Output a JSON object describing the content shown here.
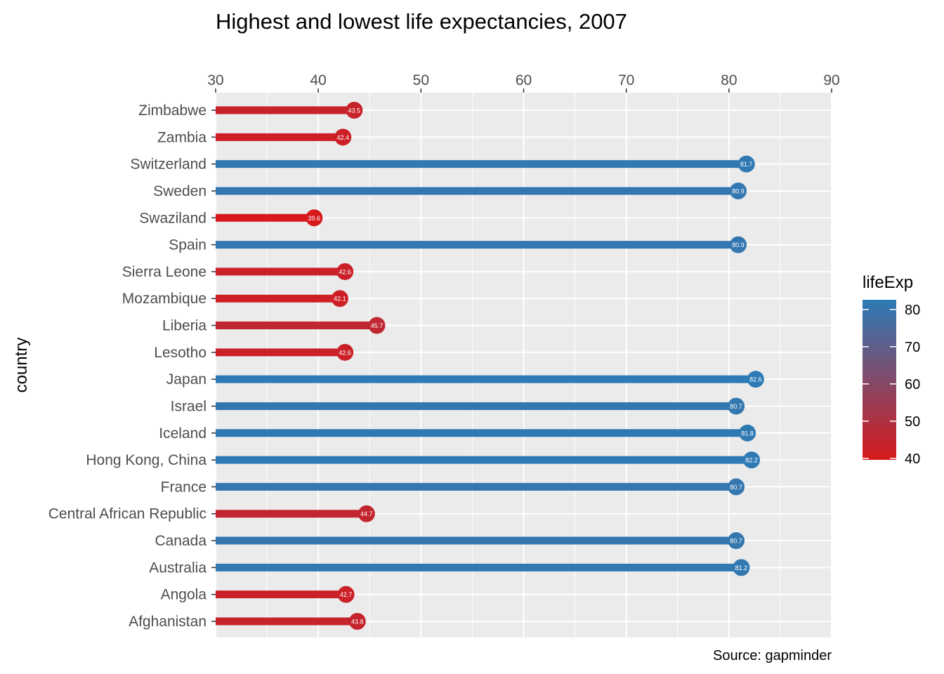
{
  "chart_data": {
    "type": "bar",
    "subtype": "lollipop-horizontal",
    "title": "Highest and lowest life expectancies, 2007",
    "xlabel": "",
    "ylabel": "country",
    "x_axis_position": "top",
    "xlim": [
      30,
      90
    ],
    "xticks": [
      30,
      40,
      50,
      60,
      70,
      80,
      90
    ],
    "grid": true,
    "caption": "Source: gapminder",
    "legend": {
      "title": "lifeExp",
      "type": "colorbar",
      "position": "right",
      "ticks": [
        40,
        50,
        60,
        70,
        80
      ],
      "range": [
        39.6,
        82.6
      ],
      "color_low": "#d7191c",
      "color_high": "#2c7bb6"
    },
    "categories": [
      "Zimbabwe",
      "Zambia",
      "Switzerland",
      "Sweden",
      "Swaziland",
      "Spain",
      "Sierra Leone",
      "Mozambique",
      "Liberia",
      "Lesotho",
      "Japan",
      "Israel",
      "Iceland",
      "Hong Kong, China",
      "France",
      "Central African Republic",
      "Canada",
      "Australia",
      "Angola",
      "Afghanistan"
    ],
    "values": [
      43.5,
      42.4,
      81.7,
      80.9,
      39.6,
      80.9,
      42.6,
      42.1,
      45.7,
      42.6,
      82.6,
      80.7,
      81.8,
      82.2,
      80.7,
      44.7,
      80.7,
      81.2,
      42.7,
      43.8
    ],
    "value_labels": [
      "43.5",
      "42.4",
      "81.7",
      "80.9",
      "39.6",
      "80.9",
      "42.6",
      "42.1",
      "45.7",
      "42.6",
      "82.6",
      "80.7",
      "81.8",
      "82.2",
      "80.7",
      "44.7",
      "80.7",
      "81.2",
      "42.7",
      "43.8"
    ]
  }
}
